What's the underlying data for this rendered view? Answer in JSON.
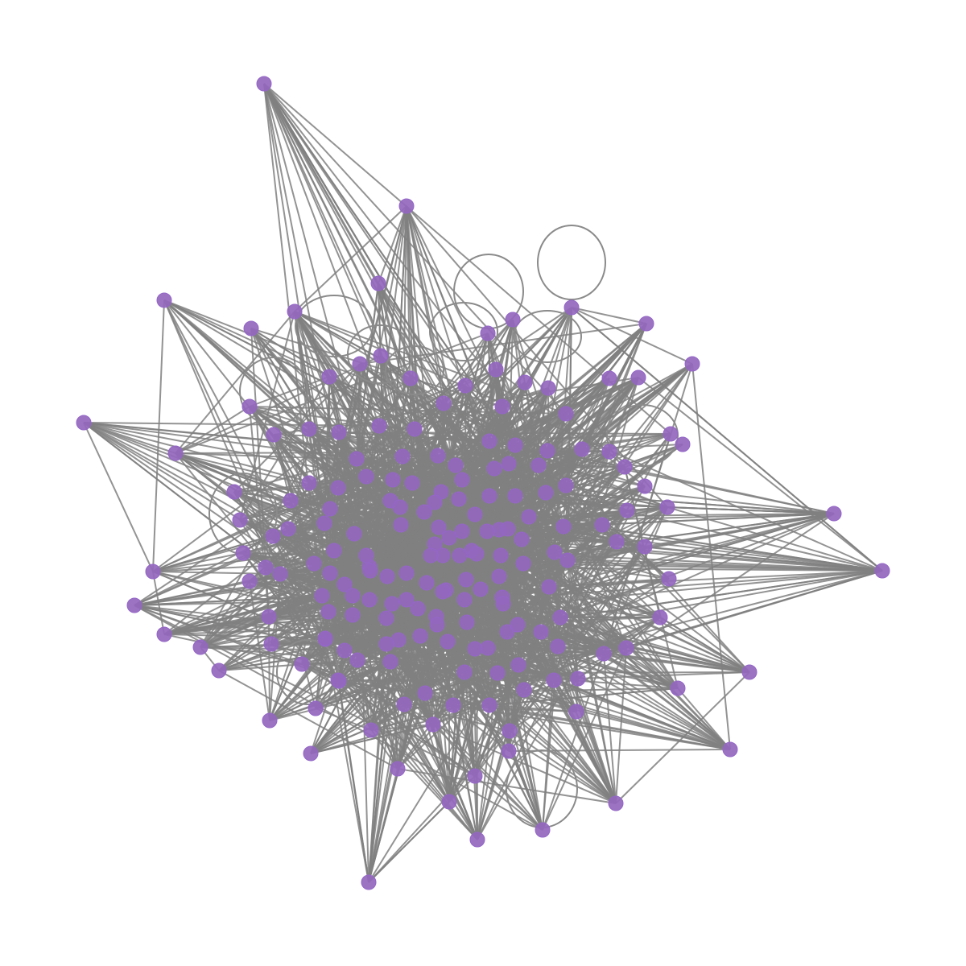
{
  "graph": {
    "node_color": "#9467bd",
    "edge_color": "#808080",
    "background": "#ffffff",
    "node_count": 200,
    "self_loops": 12,
    "seed": 7
  }
}
